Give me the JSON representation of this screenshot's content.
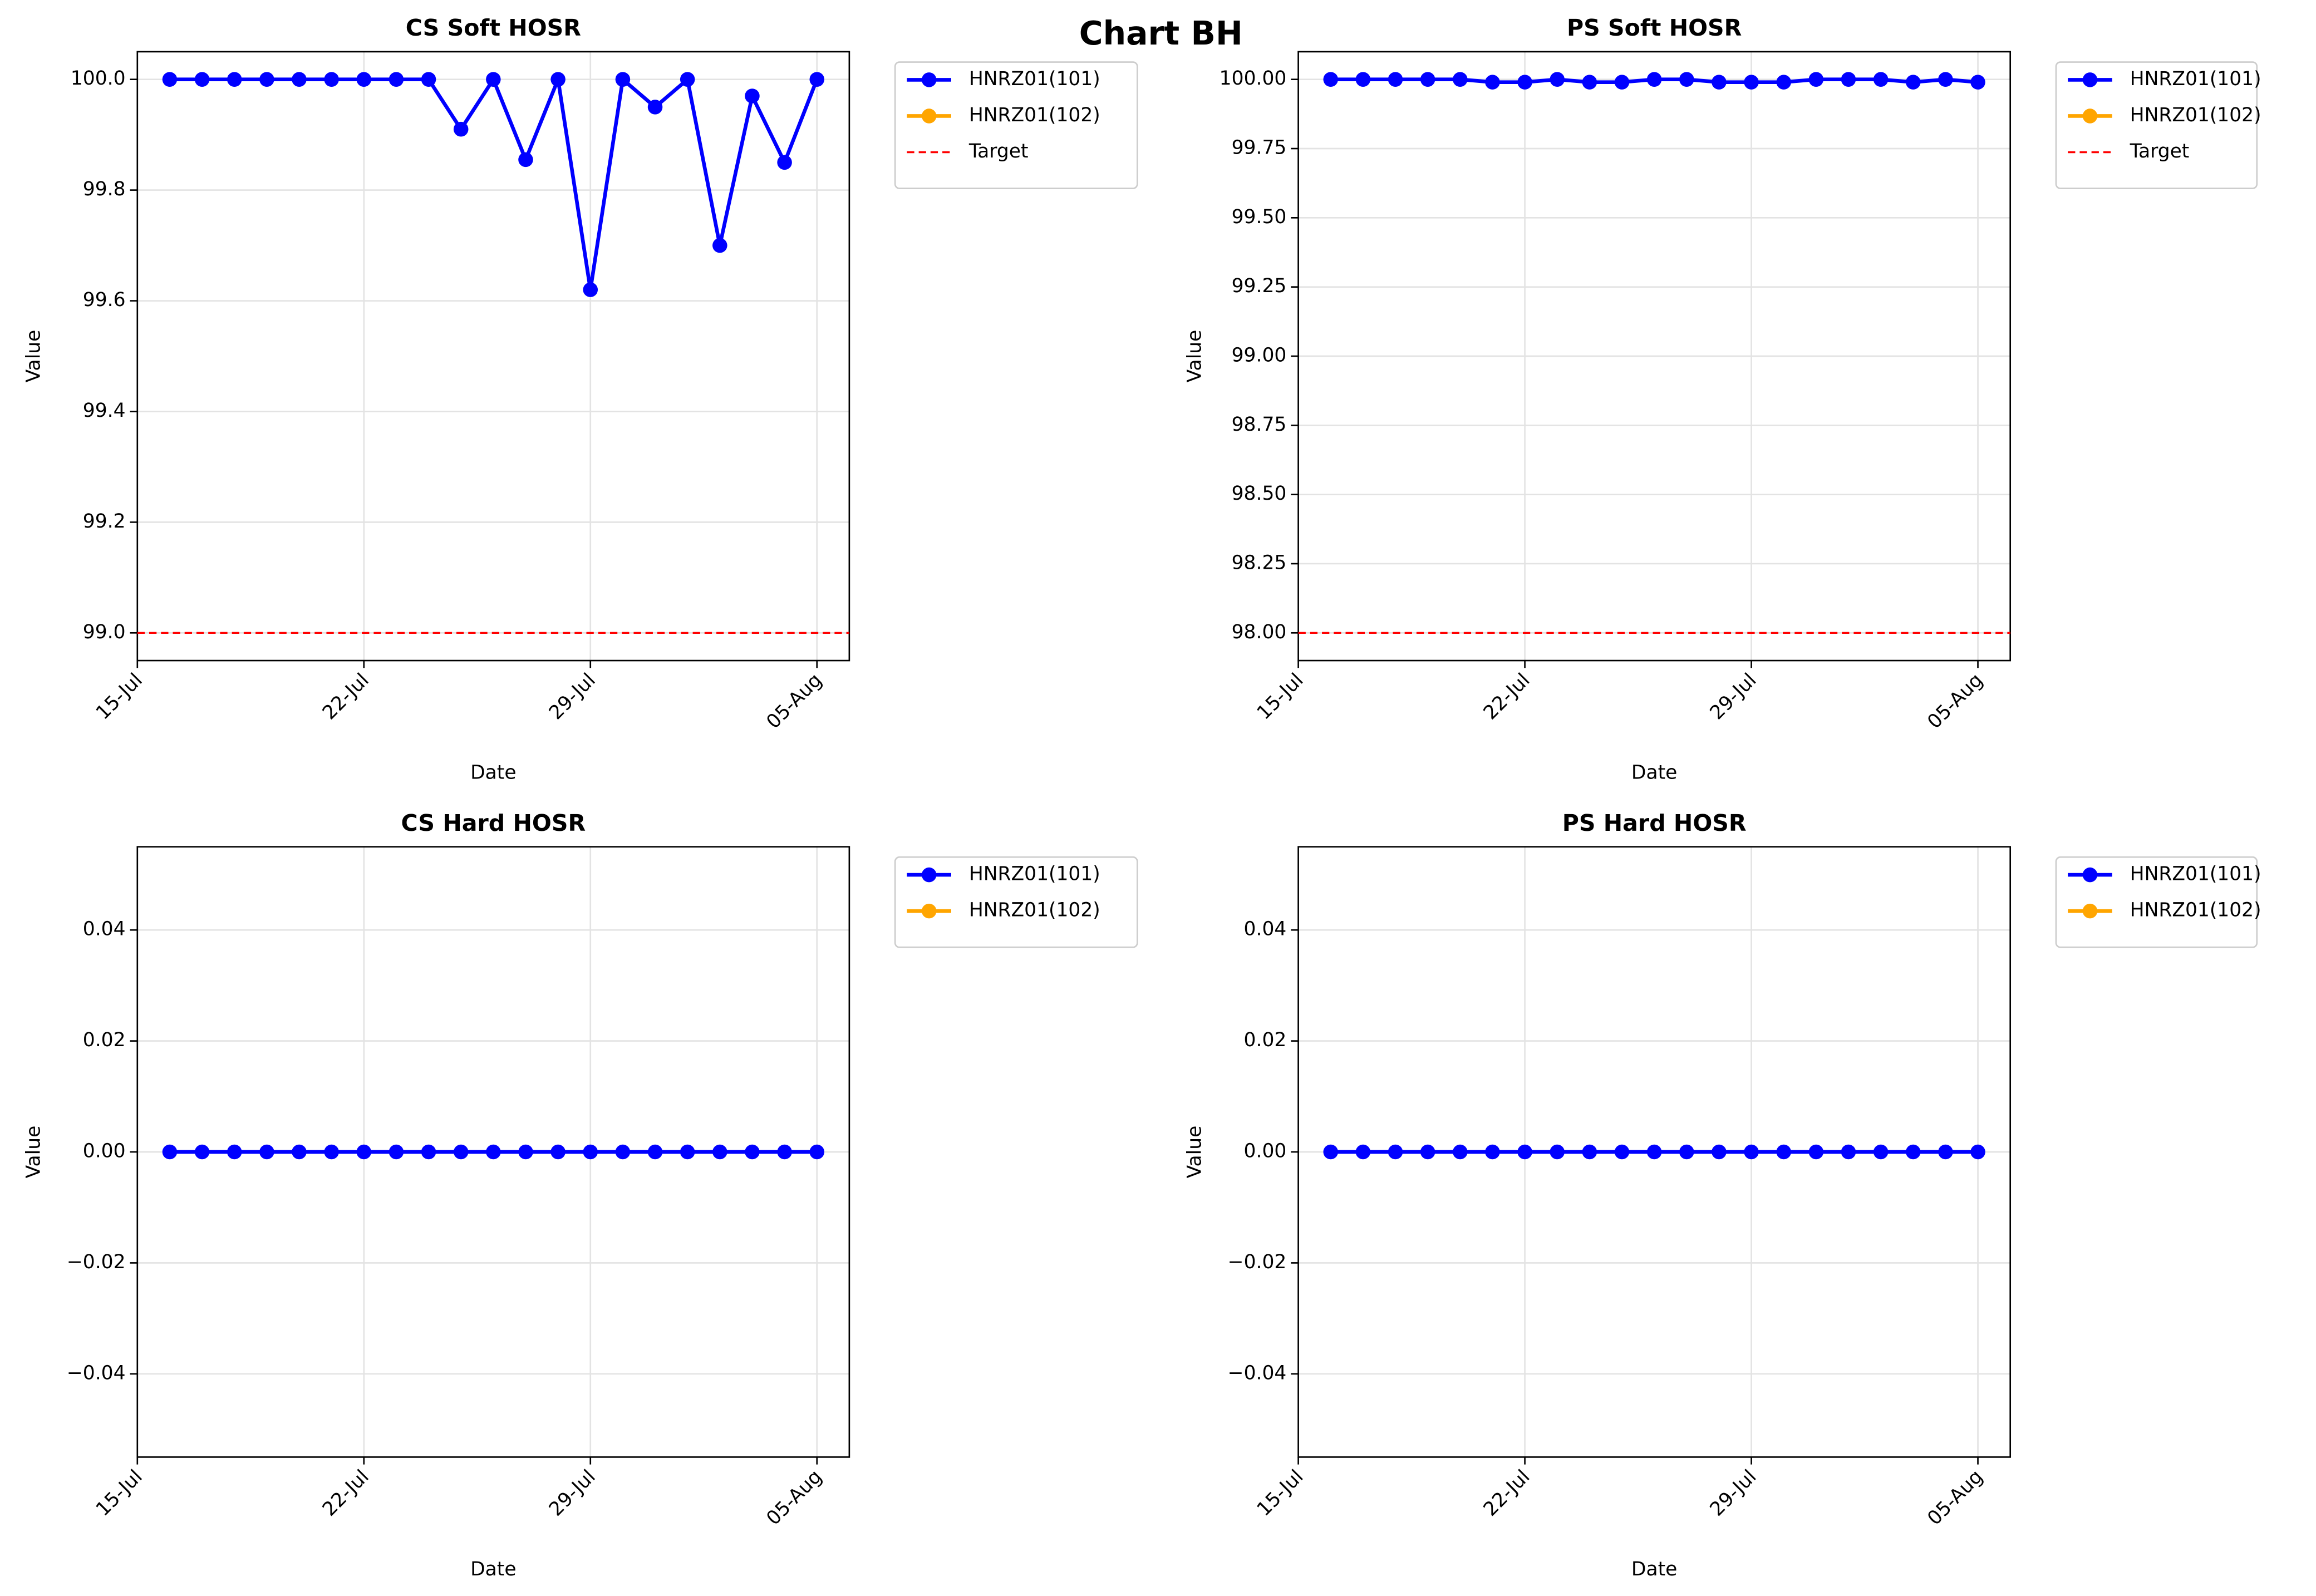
{
  "title": "Chart BH",
  "chart_data": [
    {
      "type": "line",
      "title": "CS Soft HOSR",
      "xlabel": "Date",
      "ylabel": "Value",
      "x": [
        "16-Jul",
        "17-Jul",
        "18-Jul",
        "19-Jul",
        "20-Jul",
        "21-Jul",
        "22-Jul",
        "23-Jul",
        "24-Jul",
        "25-Jul",
        "26-Jul",
        "27-Jul",
        "28-Jul",
        "29-Jul",
        "30-Jul",
        "31-Jul",
        "01-Aug",
        "02-Aug",
        "03-Aug",
        "04-Aug",
        "05-Aug"
      ],
      "xlim": [
        "15-Jul",
        "06-Aug"
      ],
      "xticks": [
        "15-Jul",
        "22-Jul",
        "29-Jul",
        "05-Aug"
      ],
      "ylim": [
        98.95,
        100.05
      ],
      "yticks": [
        {
          "value": 99,
          "label": "99.0"
        },
        99.2,
        99.4,
        99.6,
        99.8,
        {
          "value": 100,
          "label": "100.0"
        }
      ],
      "grid": true,
      "legend": "outside upper right",
      "series": [
        {
          "name": "HNRZ01(101)",
          "color": "#0000ff",
          "values": [
            100,
            100,
            100,
            100,
            100,
            100,
            100,
            100,
            100,
            99.91,
            100,
            99.855,
            100,
            99.62,
            100,
            99.95,
            100,
            99.7,
            99.97,
            99.85,
            100
          ]
        },
        {
          "name": "HNRZ01(102)",
          "color": "#ffa500",
          "values": [
            null,
            null,
            null,
            null,
            null,
            null,
            null,
            null,
            null,
            null,
            null,
            null,
            null,
            null,
            null,
            null,
            null,
            null,
            null,
            null,
            null
          ]
        }
      ],
      "target": {
        "name": "Target",
        "value": 99,
        "color": "#ff0000"
      }
    },
    {
      "type": "line",
      "title": "PS Soft HOSR",
      "xlabel": "Date",
      "ylabel": "Value",
      "x": [
        "16-Jul",
        "17-Jul",
        "18-Jul",
        "19-Jul",
        "20-Jul",
        "21-Jul",
        "22-Jul",
        "23-Jul",
        "24-Jul",
        "25-Jul",
        "26-Jul",
        "27-Jul",
        "28-Jul",
        "29-Jul",
        "30-Jul",
        "31-Jul",
        "01-Aug",
        "02-Aug",
        "03-Aug",
        "04-Aug",
        "05-Aug"
      ],
      "xlim": [
        "15-Jul",
        "06-Aug"
      ],
      "xticks": [
        "15-Jul",
        "22-Jul",
        "29-Jul",
        "05-Aug"
      ],
      "ylim": [
        97.9,
        100.1
      ],
      "yticks": [
        {
          "value": 98,
          "label": "98.00"
        },
        98.25,
        {
          "value": 98.5,
          "label": "98.50"
        },
        98.75,
        {
          "value": 99,
          "label": "99.00"
        },
        99.25,
        {
          "value": 99.5,
          "label": "99.50"
        },
        99.75,
        {
          "value": 100,
          "label": "100.00"
        }
      ],
      "grid": true,
      "legend": "outside upper right",
      "series": [
        {
          "name": "HNRZ01(101)",
          "color": "#0000ff",
          "values": [
            100,
            100,
            100,
            100,
            100,
            99.99,
            99.99,
            100,
            99.99,
            99.99,
            100,
            100,
            99.99,
            99.99,
            99.99,
            100,
            100,
            100,
            99.99,
            100,
            99.99
          ]
        },
        {
          "name": "HNRZ01(102)",
          "color": "#ffa500",
          "values": [
            null,
            null,
            null,
            null,
            null,
            null,
            null,
            null,
            null,
            null,
            null,
            null,
            null,
            null,
            null,
            null,
            null,
            null,
            null,
            null,
            null
          ]
        }
      ],
      "target": {
        "name": "Target",
        "value": 98,
        "color": "#ff0000"
      }
    },
    {
      "type": "line",
      "title": "CS Hard HOSR",
      "xlabel": "Date",
      "ylabel": "Value",
      "x": [
        "16-Jul",
        "17-Jul",
        "18-Jul",
        "19-Jul",
        "20-Jul",
        "21-Jul",
        "22-Jul",
        "23-Jul",
        "24-Jul",
        "25-Jul",
        "26-Jul",
        "27-Jul",
        "28-Jul",
        "29-Jul",
        "30-Jul",
        "31-Jul",
        "01-Aug",
        "02-Aug",
        "03-Aug",
        "04-Aug",
        "05-Aug"
      ],
      "xlim": [
        "15-Jul",
        "06-Aug"
      ],
      "xticks": [
        "15-Jul",
        "22-Jul",
        "29-Jul",
        "05-Aug"
      ],
      "ylim": [
        -0.055,
        0.055
      ],
      "yticks": [
        {
          "value": -0.04,
          "label": "−0.04"
        },
        {
          "value": -0.02,
          "label": "−0.02"
        },
        {
          "value": 0,
          "label": "0.00"
        },
        0.02,
        0.04
      ],
      "grid": true,
      "legend": "outside upper right",
      "series": [
        {
          "name": "HNRZ01(101)",
          "color": "#0000ff",
          "values": [
            0,
            0,
            0,
            0,
            0,
            0,
            0,
            0,
            0,
            0,
            0,
            0,
            0,
            0,
            0,
            0,
            0,
            0,
            0,
            0,
            0
          ]
        },
        {
          "name": "HNRZ01(102)",
          "color": "#ffa500",
          "values": [
            null,
            null,
            null,
            null,
            null,
            null,
            null,
            null,
            null,
            null,
            null,
            null,
            null,
            null,
            null,
            null,
            null,
            null,
            null,
            null,
            null
          ]
        }
      ]
    },
    {
      "type": "line",
      "title": "PS Hard HOSR",
      "xlabel": "Date",
      "ylabel": "Value",
      "x": [
        "16-Jul",
        "17-Jul",
        "18-Jul",
        "19-Jul",
        "20-Jul",
        "21-Jul",
        "22-Jul",
        "23-Jul",
        "24-Jul",
        "25-Jul",
        "26-Jul",
        "27-Jul",
        "28-Jul",
        "29-Jul",
        "30-Jul",
        "31-Jul",
        "01-Aug",
        "02-Aug",
        "03-Aug",
        "04-Aug",
        "05-Aug"
      ],
      "xlim": [
        "15-Jul",
        "06-Aug"
      ],
      "xticks": [
        "15-Jul",
        "22-Jul",
        "29-Jul",
        "05-Aug"
      ],
      "ylim": [
        -0.055,
        0.055
      ],
      "yticks": [
        {
          "value": -0.04,
          "label": "−0.04"
        },
        {
          "value": -0.02,
          "label": "−0.02"
        },
        {
          "value": 0,
          "label": "0.00"
        },
        0.02,
        0.04
      ],
      "grid": true,
      "legend": "outside upper right",
      "series": [
        {
          "name": "HNRZ01(101)",
          "color": "#0000ff",
          "values": [
            0,
            0,
            0,
            0,
            0,
            0,
            0,
            0,
            0,
            0,
            0,
            0,
            0,
            0,
            0,
            0,
            0,
            0,
            0,
            0,
            0
          ]
        },
        {
          "name": "HNRZ01(102)",
          "color": "#ffa500",
          "values": [
            null,
            null,
            null,
            null,
            null,
            null,
            null,
            null,
            null,
            null,
            null,
            null,
            null,
            null,
            null,
            null,
            null,
            null,
            null,
            null,
            null
          ]
        }
      ]
    }
  ]
}
